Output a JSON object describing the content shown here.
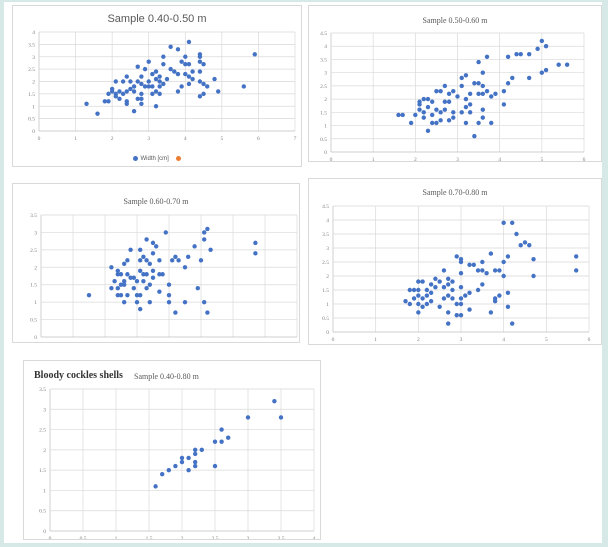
{
  "colors": {
    "point": "#4472c4",
    "grid": "#d9d9d9",
    "axis": "#bfbfbf",
    "tick": "#7f7f7f",
    "legend_second": "#ed7d31"
  },
  "figure_title": "Bloody cockles shells",
  "legend": {
    "series1": "Width [cm]"
  },
  "chart_data": [
    {
      "type": "scatter",
      "title": "Sample 0.40-0.50 m",
      "xlim": [
        0,
        7
      ],
      "ylim": [
        0,
        4
      ],
      "xticks": [
        "0",
        "1",
        "2",
        "3",
        "4",
        "5",
        "6",
        "7"
      ],
      "xstep": 1,
      "yticks": [
        "0",
        "0.5",
        "1",
        "1.5",
        "2",
        "2.5",
        "3",
        "3.5",
        "4"
      ],
      "ystep": 0.5,
      "legend": [
        "Width [cm]",
        ""
      ],
      "grid": true,
      "points": [
        [
          1.3,
          1.1
        ],
        [
          1.6,
          0.7
        ],
        [
          1.8,
          1.2
        ],
        [
          1.9,
          1.2
        ],
        [
          1.9,
          1.5
        ],
        [
          2,
          1.6
        ],
        [
          2,
          1.7
        ],
        [
          2.1,
          1.5
        ],
        [
          2.1,
          2
        ],
        [
          2.1,
          1.4
        ],
        [
          2.2,
          1.3
        ],
        [
          2.2,
          1.6
        ],
        [
          2.3,
          1.5
        ],
        [
          2.3,
          2
        ],
        [
          2.4,
          2.2
        ],
        [
          2.4,
          1.6
        ],
        [
          2.4,
          1.2
        ],
        [
          2.4,
          1.1
        ],
        [
          2.5,
          2
        ],
        [
          2.5,
          1.7
        ],
        [
          2.6,
          1.8
        ],
        [
          2.6,
          0.8
        ],
        [
          2.6,
          1.6
        ],
        [
          2.7,
          2.6
        ],
        [
          2.7,
          1.3
        ],
        [
          2.7,
          2
        ],
        [
          2.8,
          2.2
        ],
        [
          2.8,
          1.9
        ],
        [
          2.8,
          1.5
        ],
        [
          2.8,
          1.1
        ],
        [
          2.8,
          1.3
        ],
        [
          2.9,
          2.5
        ],
        [
          2.9,
          1.8
        ],
        [
          3,
          2.8
        ],
        [
          3,
          1.8
        ],
        [
          3,
          2.0
        ],
        [
          3.1,
          2.3
        ],
        [
          3.1,
          1.5
        ],
        [
          3.1,
          1.8
        ],
        [
          3.2,
          2.4
        ],
        [
          3.2,
          1.6
        ],
        [
          3.2,
          1.0
        ],
        [
          3.2,
          2.1
        ],
        [
          3.3,
          2.2
        ],
        [
          3.3,
          1.5
        ],
        [
          3.3,
          1.8
        ],
        [
          3.3,
          2.0
        ],
        [
          3.4,
          3.0
        ],
        [
          3.4,
          2.7
        ],
        [
          3.4,
          1.9
        ],
        [
          3.5,
          2.1
        ],
        [
          3.6,
          3.4
        ],
        [
          3.6,
          2.5
        ],
        [
          3.7,
          2.4
        ],
        [
          3.8,
          3.3
        ],
        [
          3.8,
          2.3
        ],
        [
          3.8,
          1.6
        ],
        [
          3.9,
          2.8
        ],
        [
          3.9,
          1.8
        ],
        [
          4,
          3.0
        ],
        [
          4,
          2.7
        ],
        [
          4,
          2.3
        ],
        [
          4.1,
          3.6
        ],
        [
          4.1,
          2.7
        ],
        [
          4.1,
          2.2
        ],
        [
          4.1,
          1.9
        ],
        [
          4.2,
          2.4
        ],
        [
          4.2,
          2.1
        ],
        [
          4.4,
          3.1
        ],
        [
          4.4,
          3.0
        ],
        [
          4.4,
          2.8
        ],
        [
          4.4,
          2.4
        ],
        [
          4.4,
          2.0
        ],
        [
          4.4,
          1.4
        ],
        [
          4.5,
          2.7
        ],
        [
          4.5,
          1.9
        ],
        [
          4.5,
          1.5
        ],
        [
          4.6,
          1.8
        ],
        [
          4.8,
          2.1
        ],
        [
          4.9,
          1.6
        ],
        [
          5.6,
          1.8
        ],
        [
          5.9,
          3.1
        ]
      ]
    },
    {
      "type": "scatter",
      "title": "Sample 0.50-0.60 m",
      "xlim": [
        0,
        6
      ],
      "ylim": [
        0,
        4.5
      ],
      "xticks": [
        "0",
        "1",
        "2",
        "3",
        "4",
        "5",
        "6"
      ],
      "xstep": 1,
      "yticks": [
        "0",
        "0.5",
        "1",
        "1.5",
        "2",
        "2.5",
        "3",
        "3.5",
        "4",
        "4.5"
      ],
      "ystep": 0.5,
      "grid": true,
      "points": [
        [
          1.6,
          1.4
        ],
        [
          1.7,
          1.4
        ],
        [
          1.9,
          1.1
        ],
        [
          2,
          1.4
        ],
        [
          2.1,
          1.6
        ],
        [
          2.1,
          1.8
        ],
        [
          2.1,
          1.9
        ],
        [
          2.2,
          2
        ],
        [
          2.2,
          1.5
        ],
        [
          2.2,
          1.3
        ],
        [
          2.3,
          2
        ],
        [
          2.3,
          1.7
        ],
        [
          2.3,
          0.8
        ],
        [
          2.4,
          1.9
        ],
        [
          2.4,
          1.4
        ],
        [
          2.4,
          1.1
        ],
        [
          2.5,
          2.3
        ],
        [
          2.5,
          1.6
        ],
        [
          2.5,
          1.1
        ],
        [
          2.6,
          2.3
        ],
        [
          2.6,
          1.5
        ],
        [
          2.6,
          1.2
        ],
        [
          2.7,
          2.5
        ],
        [
          2.7,
          1.9
        ],
        [
          2.7,
          1.6
        ],
        [
          2.8,
          2.2
        ],
        [
          2.8,
          1.9
        ],
        [
          2.8,
          1.2
        ],
        [
          2.9,
          2.3
        ],
        [
          2.9,
          1.5
        ],
        [
          2.9,
          1.3
        ],
        [
          3,
          2.1
        ],
        [
          3.1,
          2.8
        ],
        [
          3.1,
          2.5
        ],
        [
          3.1,
          1.5
        ],
        [
          3.2,
          2.9
        ],
        [
          3.2,
          2
        ],
        [
          3.2,
          1.7
        ],
        [
          3.2,
          1.1
        ],
        [
          3.3,
          2.2
        ],
        [
          3.3,
          1.8
        ],
        [
          3.3,
          1.5
        ],
        [
          3.4,
          2.6
        ],
        [
          3.4,
          0.6
        ],
        [
          3.5,
          3.4
        ],
        [
          3.5,
          2.6
        ],
        [
          3.5,
          2.2
        ],
        [
          3.5,
          1.1
        ],
        [
          3.6,
          3
        ],
        [
          3.6,
          2.5
        ],
        [
          3.6,
          2.2
        ],
        [
          3.6,
          1.6
        ],
        [
          3.6,
          1.3
        ],
        [
          3.7,
          3.6
        ],
        [
          3.7,
          2.3
        ],
        [
          3.8,
          2.1
        ],
        [
          3.8,
          1.1
        ],
        [
          3.9,
          2.2
        ],
        [
          4.1,
          2.3
        ],
        [
          4.1,
          1.8
        ],
        [
          4.2,
          3.6
        ],
        [
          4.2,
          2.6
        ],
        [
          4.3,
          2.8
        ],
        [
          4.4,
          3.7
        ],
        [
          4.5,
          3.7
        ],
        [
          4.7,
          3.7
        ],
        [
          4.7,
          2.8
        ],
        [
          4.9,
          3.9
        ],
        [
          5,
          4.2
        ],
        [
          5,
          3
        ],
        [
          5.1,
          4
        ],
        [
          5.1,
          3.1
        ],
        [
          5.4,
          3.3
        ],
        [
          5.6,
          3.3
        ]
      ]
    },
    {
      "type": "scatter",
      "title": "Sample 0.60-0.70 m",
      "xlim": [
        0,
        8
      ],
      "ylim": [
        0,
        3.5
      ],
      "xticks": [
        "0",
        "1",
        "2",
        "3",
        "4",
        "5",
        "6",
        "7",
        "8"
      ],
      "xstep": 1,
      "yticks": [
        "0",
        "0.5",
        "1",
        "1.5",
        "2",
        "2.5",
        "3",
        "3.5"
      ],
      "ystep": 0.5,
      "grid": true,
      "points": [
        [
          1.5,
          1.2
        ],
        [
          2.2,
          2
        ],
        [
          2.2,
          1.4
        ],
        [
          2.3,
          1.6
        ],
        [
          2.4,
          1.9
        ],
        [
          2.4,
          1.8
        ],
        [
          2.4,
          1.4
        ],
        [
          2.4,
          1.2
        ],
        [
          2.5,
          1.5
        ],
        [
          2.5,
          1.2
        ],
        [
          2.5,
          1.8
        ],
        [
          2.6,
          2.1
        ],
        [
          2.6,
          1.6
        ],
        [
          2.6,
          1.5
        ],
        [
          2.6,
          1.0
        ],
        [
          2.7,
          2.2
        ],
        [
          2.7,
          1.8
        ],
        [
          2.7,
          1.2
        ],
        [
          2.8,
          2.5
        ],
        [
          2.8,
          1.7
        ],
        [
          2.9,
          1.7
        ],
        [
          2.9,
          1.4
        ],
        [
          3,
          1.6
        ],
        [
          3,
          1.2
        ],
        [
          3,
          1.0
        ],
        [
          3.1,
          2.5
        ],
        [
          3.1,
          2.2
        ],
        [
          3.1,
          1.9
        ],
        [
          3.1,
          1.2
        ],
        [
          3.1,
          0.8
        ],
        [
          3.2,
          2.3
        ],
        [
          3.2,
          1.8
        ],
        [
          3.2,
          1.6
        ],
        [
          3.3,
          2.8
        ],
        [
          3.3,
          2.2
        ],
        [
          3.3,
          1.8
        ],
        [
          3.3,
          1.4
        ],
        [
          3.4,
          2.1
        ],
        [
          3.4,
          1.5
        ],
        [
          3.4,
          1.0
        ],
        [
          3.5,
          2.7
        ],
        [
          3.5,
          2.4
        ],
        [
          3.5,
          1.9
        ],
        [
          3.5,
          1.7
        ],
        [
          3.6,
          2.6
        ],
        [
          3.7,
          2.2
        ],
        [
          3.7,
          1.8
        ],
        [
          3.7,
          1.3
        ],
        [
          3.8,
          1.8
        ],
        [
          3.9,
          3.0
        ],
        [
          4,
          1.5
        ],
        [
          4,
          1.2
        ],
        [
          4,
          1.0
        ],
        [
          4.1,
          2.2
        ],
        [
          4.2,
          2.3
        ],
        [
          4.2,
          0.7
        ],
        [
          4.3,
          2.2
        ],
        [
          4.5,
          2.0
        ],
        [
          4.5,
          1.0
        ],
        [
          4.6,
          2.3
        ],
        [
          4.8,
          2.6
        ],
        [
          4.9,
          1.4
        ],
        [
          5,
          2.2
        ],
        [
          5.1,
          3.0
        ],
        [
          5.1,
          2.8
        ],
        [
          5.1,
          1.0
        ],
        [
          5.2,
          3.1
        ],
        [
          5.2,
          0.7
        ],
        [
          5.3,
          2.5
        ],
        [
          6.7,
          2.7
        ],
        [
          6.7,
          2.4
        ]
      ]
    },
    {
      "type": "scatter",
      "title": "Sample 0.70-0.80 m",
      "xlim": [
        0,
        6
      ],
      "ylim": [
        0,
        4.5
      ],
      "xticks": [
        "0",
        "1",
        "2",
        "3",
        "4",
        "5",
        "6"
      ],
      "xstep": 1,
      "yticks": [
        "0",
        "0.5",
        "1",
        "1.5",
        "2",
        "2.5",
        "3",
        "3.5",
        "4",
        "4.5"
      ],
      "ystep": 0.5,
      "grid": true,
      "points": [
        [
          1.7,
          1.1
        ],
        [
          1.8,
          1.5
        ],
        [
          1.8,
          1.0
        ],
        [
          1.9,
          1.5
        ],
        [
          1.9,
          1.2
        ],
        [
          2,
          1.8
        ],
        [
          2,
          1.5
        ],
        [
          2,
          1.3
        ],
        [
          2,
          1.0
        ],
        [
          2,
          0.7
        ],
        [
          2.1,
          1.8
        ],
        [
          2.1,
          1.2
        ],
        [
          2.1,
          0.9
        ],
        [
          2.2,
          1.5
        ],
        [
          2.2,
          1.3
        ],
        [
          2.2,
          1.0
        ],
        [
          2.3,
          1.7
        ],
        [
          2.3,
          1.4
        ],
        [
          2.3,
          1.1
        ],
        [
          2.4,
          1.9
        ],
        [
          2.4,
          1.6
        ],
        [
          2.5,
          1.8
        ],
        [
          2.5,
          0.9
        ],
        [
          2.6,
          2.2
        ],
        [
          2.6,
          1.6
        ],
        [
          2.6,
          1.2
        ],
        [
          2.7,
          1.9
        ],
        [
          2.7,
          1.7
        ],
        [
          2.7,
          1.3
        ],
        [
          2.7,
          0.7
        ],
        [
          2.7,
          0.3
        ],
        [
          2.8,
          1.8
        ],
        [
          2.8,
          1.5
        ],
        [
          2.8,
          1.2
        ],
        [
          2.9,
          2.7
        ],
        [
          2.9,
          1.0
        ],
        [
          2.9,
          0.6
        ],
        [
          3,
          2.6
        ],
        [
          3,
          2.5
        ],
        [
          3,
          2.1
        ],
        [
          3,
          1.6
        ],
        [
          3,
          1.2
        ],
        [
          3,
          1.0
        ],
        [
          3,
          0.6
        ],
        [
          3.1,
          1.3
        ],
        [
          3.2,
          2.4
        ],
        [
          3.2,
          1.4
        ],
        [
          3.2,
          0.8
        ],
        [
          3.3,
          2.4
        ],
        [
          3.4,
          2.2
        ],
        [
          3.4,
          1.5
        ],
        [
          3.5,
          2.5
        ],
        [
          3.5,
          2.2
        ],
        [
          3.5,
          1.7
        ],
        [
          3.6,
          2.1
        ],
        [
          3.7,
          2.8
        ],
        [
          3.7,
          0.7
        ],
        [
          3.8,
          2.2
        ],
        [
          3.8,
          1.2
        ],
        [
          3.8,
          1.1
        ],
        [
          3.9,
          2.2
        ],
        [
          3.9,
          1.3
        ],
        [
          4,
          3.9
        ],
        [
          4,
          2.5
        ],
        [
          4,
          2.0
        ],
        [
          4.1,
          2.7
        ],
        [
          4.1,
          1.4
        ],
        [
          4.1,
          0.9
        ],
        [
          4.2,
          3.9
        ],
        [
          4.2,
          0.3
        ],
        [
          4.3,
          3.5
        ],
        [
          4.4,
          3.1
        ],
        [
          4.5,
          3.2
        ],
        [
          4.6,
          3.1
        ],
        [
          4.7,
          2.6
        ],
        [
          4.7,
          2.0
        ],
        [
          5.7,
          2.7
        ],
        [
          5.7,
          2.2
        ]
      ]
    },
    {
      "type": "scatter",
      "title": "Sample 0.40-0.80 m",
      "xlim": [
        0,
        4
      ],
      "ylim": [
        0,
        3.5
      ],
      "xticks": [
        "0",
        "0.5",
        "1",
        "1.5",
        "2",
        "2.5",
        "3",
        "3.5",
        "4"
      ],
      "xstep": 0.5,
      "yticks": [
        "0",
        "0.5",
        "1",
        "1.5",
        "2",
        "2.5",
        "3",
        "3.5"
      ],
      "ystep": 0.5,
      "grid": true,
      "points": [
        [
          1.6,
          1.1
        ],
        [
          1.7,
          1.4
        ],
        [
          1.8,
          1.5
        ],
        [
          1.9,
          1.6
        ],
        [
          2,
          1.8
        ],
        [
          2,
          1.7
        ],
        [
          2.1,
          1.8
        ],
        [
          2.1,
          1.5
        ],
        [
          2.2,
          2
        ],
        [
          2.2,
          1.9
        ],
        [
          2.2,
          1.7
        ],
        [
          2.2,
          1.6
        ],
        [
          2.3,
          2
        ],
        [
          2.5,
          2.2
        ],
        [
          2.5,
          1.6
        ],
        [
          2.6,
          2.5
        ],
        [
          2.6,
          2.2
        ],
        [
          2.7,
          2.3
        ],
        [
          3,
          2.8
        ],
        [
          3.4,
          3.2
        ],
        [
          3.5,
          2.8
        ]
      ]
    }
  ]
}
